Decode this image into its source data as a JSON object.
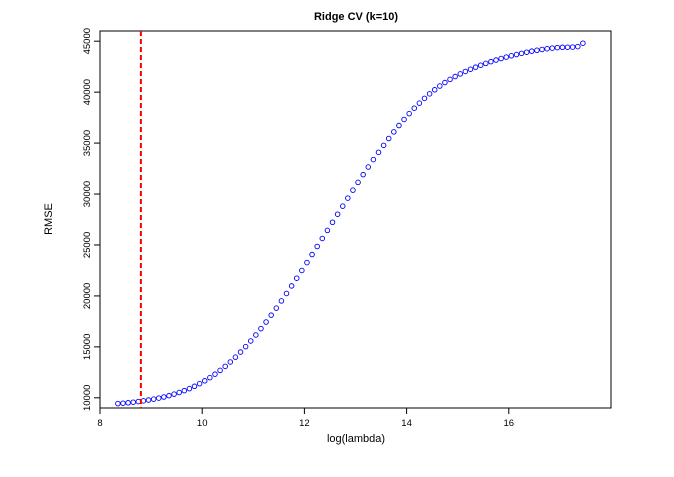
{
  "chart_data": {
    "type": "scatter",
    "title": "Ridge CV (k=10)",
    "xlabel": "log(lambda)",
    "ylabel": "RMSE",
    "xlim": [
      8,
      18
    ],
    "ylim": [
      9000,
      46000
    ],
    "xticks": [
      8,
      10,
      12,
      14,
      16
    ],
    "yticks": [
      10000,
      15000,
      20000,
      25000,
      30000,
      35000,
      40000,
      45000
    ],
    "xtick_labels": [
      "8",
      "10",
      "12",
      "14",
      "16"
    ],
    "ytick_labels": [
      "10000",
      "15000",
      "20000",
      "25000",
      "30000",
      "35000",
      "40000",
      "45000"
    ],
    "vline_x": 8.8,
    "colors": {
      "points": "#0000ff",
      "vline": "#ff0000",
      "axis": "#000000"
    },
    "series": [
      {
        "x": [
          8.35,
          8.45,
          8.55,
          8.65,
          8.75,
          8.85,
          8.95,
          9.05,
          9.15,
          9.25,
          9.35,
          9.45,
          9.55,
          9.65,
          9.75,
          9.85,
          9.95,
          10.05,
          10.15,
          10.25,
          10.35,
          10.45,
          10.55,
          10.65,
          10.75,
          10.85,
          10.95,
          11.05,
          11.15,
          11.25,
          11.35,
          11.45,
          11.55,
          11.65,
          11.75,
          11.85,
          11.95,
          12.05,
          12.15,
          12.25,
          12.35,
          12.45,
          12.55,
          12.65,
          12.75,
          12.85,
          12.95,
          13.05,
          13.15,
          13.25,
          13.35,
          13.45,
          13.55,
          13.65,
          13.75,
          13.85,
          13.95,
          14.05,
          14.15,
          14.25,
          14.35,
          14.45,
          14.55,
          14.65,
          14.75,
          14.85,
          14.95,
          15.05,
          15.15,
          15.25,
          15.35,
          15.45,
          15.55,
          15.65,
          15.75,
          15.85,
          15.95,
          16.05,
          16.15,
          16.25,
          16.35,
          16.45,
          16.55,
          16.65,
          16.75,
          16.85,
          16.95,
          17.05,
          17.15,
          17.25,
          17.35,
          17.45
        ],
        "y": [
          9430,
          9470,
          9510,
          9570,
          9630,
          9700,
          9780,
          9870,
          9970,
          10080,
          10210,
          10360,
          10520,
          10700,
          10900,
          11130,
          11390,
          11670,
          11980,
          12320,
          12690,
          13090,
          13520,
          13990,
          14490,
          15020,
          15580,
          16170,
          16790,
          17440,
          18110,
          18800,
          19510,
          20240,
          20980,
          21740,
          22500,
          23270,
          24060,
          24850,
          25640,
          26430,
          27230,
          28020,
          28810,
          29600,
          30380,
          31140,
          31900,
          32650,
          33380,
          34090,
          34780,
          35450,
          36100,
          36720,
          37320,
          37890,
          38420,
          38920,
          39390,
          39830,
          40230,
          40600,
          40940,
          41250,
          41530,
          41790,
          42030,
          42250,
          42450,
          42640,
          42820,
          42990,
          43150,
          43300,
          43440,
          43570,
          43690,
          43810,
          43920,
          44020,
          44110,
          44190,
          44260,
          44320,
          44370,
          44400,
          44410,
          44420,
          44470,
          44800
        ]
      }
    ]
  }
}
